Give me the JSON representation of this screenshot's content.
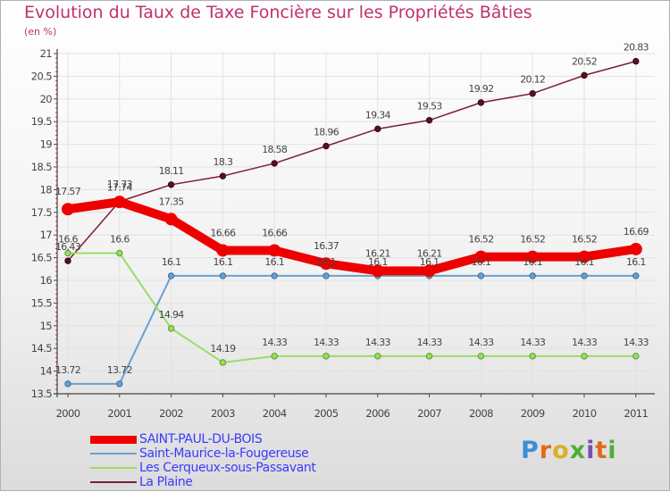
{
  "title": "Evolution du Taux de Taxe Foncière sur les Propriétés Bâties",
  "subtitle": "(en %)",
  "logo": {
    "text": "Proxiti"
  },
  "chart_data": {
    "type": "line",
    "x": [
      "2000",
      "2001",
      "2002",
      "2003",
      "2004",
      "2005",
      "2006",
      "2007",
      "2008",
      "2009",
      "2010",
      "2011"
    ],
    "ylim": [
      13.5,
      21
    ],
    "yticks": [
      "13.5",
      "14",
      "14.5",
      "15",
      "15.5",
      "16",
      "16.5",
      "17",
      "17.5",
      "18",
      "18.5",
      "19",
      "19.5",
      "20",
      "20.5",
      "21"
    ],
    "grid": true,
    "legend_position": "bottom-left",
    "series": [
      {
        "name": "SAINT-PAUL-DU-BOIS",
        "color": "#ee0000",
        "width": 10,
        "values": [
          17.57,
          17.73,
          17.35,
          16.66,
          16.66,
          16.37,
          16.21,
          16.21,
          16.52,
          16.52,
          16.52,
          16.69
        ],
        "labels": [
          "17.57",
          "17.73",
          "17.35",
          "16.66",
          "16.66",
          "16.37",
          "16.21",
          "16.21",
          "16.52",
          "16.52",
          "16.52",
          "16.69"
        ]
      },
      {
        "name": "Saint-Maurice-la-Fougereuse",
        "color": "#6aa0d0",
        "width": 2,
        "values": [
          13.72,
          13.72,
          16.1,
          16.1,
          16.1,
          16.1,
          16.1,
          16.1,
          16.1,
          16.1,
          16.1,
          16.1
        ],
        "labels": [
          "13.72",
          "13.72",
          "16.1",
          "16.1",
          "16.1",
          "16.1",
          "16.1",
          "16.1",
          "16.1",
          "16.1",
          "16.1",
          "16.1"
        ]
      },
      {
        "name": "Les Cerqueux-sous-Passavant",
        "color": "#99dd66",
        "width": 2,
        "values": [
          16.6,
          16.6,
          14.94,
          14.19,
          14.33,
          14.33,
          14.33,
          14.33,
          14.33,
          14.33,
          14.33,
          14.33
        ],
        "labels": [
          "16.6",
          "16.6",
          "14.94",
          "14.19",
          "14.33",
          "14.33",
          "14.33",
          "14.33",
          "14.33",
          "14.33",
          "14.33",
          "14.33"
        ]
      },
      {
        "name": "La Plaine",
        "color": "#7a2030",
        "width": 1.5,
        "values": [
          16.43,
          17.74,
          18.11,
          18.3,
          18.58,
          18.96,
          19.34,
          19.53,
          19.92,
          20.12,
          20.52,
          20.83
        ],
        "labels": [
          "16.43",
          "17.74",
          "18.11",
          "18.3",
          "18.58",
          "18.96",
          "19.34",
          "19.53",
          "19.92",
          "20.12",
          "20.52",
          "20.83"
        ]
      }
    ]
  }
}
